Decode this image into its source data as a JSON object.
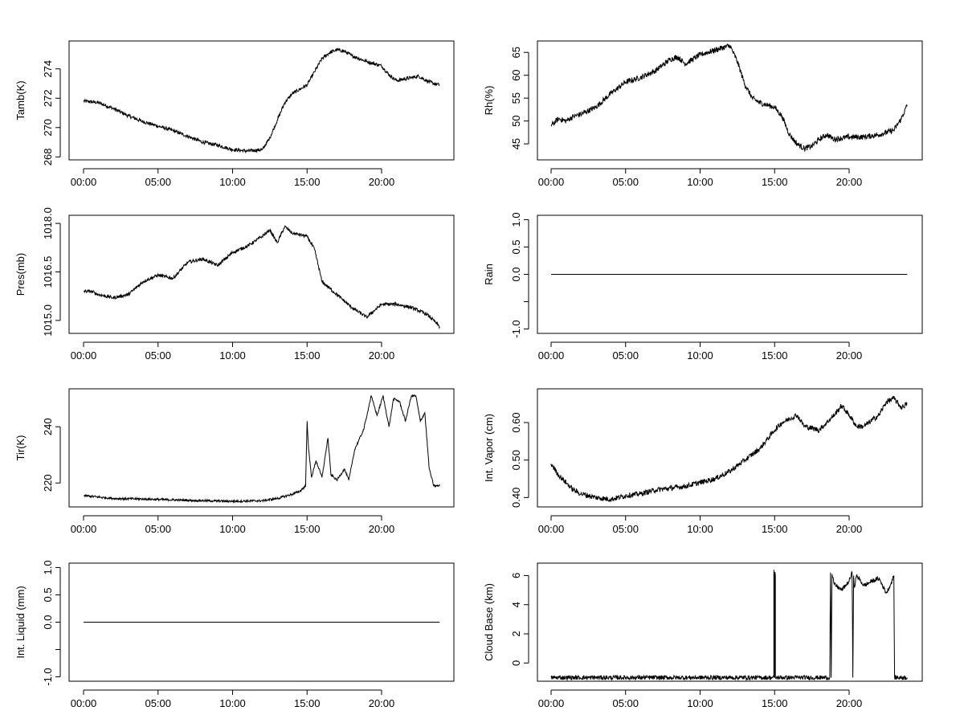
{
  "figure": {
    "layout": "4 rows x 2 columns of time-series panels",
    "time_ticks": [
      "00:00",
      "05:00",
      "10:00",
      "15:00",
      "20:00"
    ],
    "line_color": "#000000"
  },
  "chart_data": [
    {
      "id": "tamb",
      "type": "line",
      "ylabel": "Tamb(K)",
      "xlabel": "",
      "x_unit": "hours",
      "xlim": [
        0,
        24
      ],
      "ylim": [
        267.8,
        275.9
      ],
      "yticks": [
        268,
        270,
        272,
        274
      ],
      "ytick_labels": [
        "268",
        "270",
        "272",
        "274"
      ],
      "noise": 0.12,
      "series": [
        {
          "x": [
            0,
            1,
            2,
            3,
            4,
            5,
            6,
            7,
            8,
            9,
            10,
            11,
            12,
            12.5,
            13,
            13.5,
            14,
            15,
            15.5,
            16,
            16.5,
            17,
            17.5,
            18,
            19,
            20,
            20.5,
            21,
            22,
            22.5,
            23,
            23.5,
            23.9
          ],
          "y": [
            271.8,
            271.7,
            271.3,
            270.8,
            270.4,
            270.1,
            269.8,
            269.4,
            269.0,
            268.8,
            268.5,
            268.4,
            268.5,
            269.3,
            270.5,
            271.7,
            272.3,
            272.9,
            273.8,
            274.7,
            275.1,
            275.3,
            275.2,
            274.9,
            274.5,
            274.2,
            273.6,
            273.2,
            273.4,
            273.5,
            273.2,
            273.0,
            272.9
          ]
        }
      ]
    },
    {
      "id": "rh",
      "type": "line",
      "ylabel": "Rh(%)",
      "xlabel": "",
      "x_unit": "hours",
      "xlim": [
        0,
        24
      ],
      "ylim": [
        41.5,
        67.5
      ],
      "yticks": [
        45,
        50,
        55,
        60,
        65
      ],
      "ytick_labels": [
        "45",
        "50",
        "55",
        "60",
        "65"
      ],
      "noise": 0.6,
      "series": [
        {
          "x": [
            0,
            0.5,
            1,
            1.5,
            2,
            3,
            4,
            5,
            6,
            7,
            8,
            8.5,
            9,
            10,
            11,
            12,
            12.5,
            13,
            13.5,
            14,
            15,
            15.5,
            16,
            16.5,
            17,
            17.5,
            18,
            18.5,
            19,
            20,
            21,
            22,
            23,
            23.5,
            23.9
          ],
          "y": [
            49,
            50.5,
            50,
            51,
            51.5,
            53,
            56,
            58.5,
            59.5,
            61,
            63.5,
            64,
            62.5,
            64.5,
            65.5,
            66.5,
            63,
            58,
            55,
            54,
            53,
            51,
            47,
            45,
            44,
            44.5,
            46,
            47,
            46,
            46.5,
            46.5,
            47,
            48,
            50.5,
            53.5
          ]
        }
      ]
    },
    {
      "id": "pres",
      "type": "line",
      "ylabel": "Pres(mb)",
      "xlabel": "",
      "x_unit": "hours",
      "xlim": [
        0,
        24
      ],
      "ylim": [
        1014.6,
        1018.25
      ],
      "yticks": [
        1015.0,
        1016.5,
        1018.0
      ],
      "ytick_labels": [
        "1015.0",
        "1016.5",
        "1018.0"
      ],
      "noise": 0.05,
      "series": [
        {
          "x": [
            0,
            0.5,
            1,
            2,
            3,
            4,
            5,
            6,
            7,
            8,
            9,
            10,
            11,
            12,
            12.5,
            13,
            13.5,
            14,
            15,
            15.5,
            16,
            17,
            18,
            19,
            20,
            21,
            22,
            22.5,
            23,
            23.5,
            23.9
          ],
          "y": [
            1015.9,
            1015.9,
            1015.8,
            1015.7,
            1015.8,
            1016.2,
            1016.4,
            1016.3,
            1016.8,
            1016.9,
            1016.7,
            1017.1,
            1017.3,
            1017.6,
            1017.8,
            1017.4,
            1017.9,
            1017.7,
            1017.6,
            1017.2,
            1016.2,
            1015.8,
            1015.4,
            1015.1,
            1015.5,
            1015.5,
            1015.4,
            1015.3,
            1015.2,
            1015.0,
            1014.8
          ]
        }
      ]
    },
    {
      "id": "rain",
      "type": "line",
      "ylabel": "Rain",
      "xlabel": "",
      "x_unit": "hours",
      "xlim": [
        0,
        24
      ],
      "ylim": [
        -1.08,
        1.08
      ],
      "yticks": [
        -1.0,
        -0.5,
        0.0,
        0.5,
        1.0
      ],
      "ytick_labels": [
        "-1.0",
        "",
        "0.0",
        "0.5",
        "1.0"
      ],
      "noise": 0,
      "series": [
        {
          "x": [
            0,
            23.9
          ],
          "y": [
            0,
            0
          ]
        }
      ]
    },
    {
      "id": "tir",
      "type": "line",
      "ylabel": "Tir(K)",
      "xlabel": "",
      "x_unit": "hours",
      "xlim": [
        0,
        24
      ],
      "ylim": [
        211.5,
        253.5
      ],
      "yticks": [
        220,
        240
      ],
      "ytick_labels": [
        "220",
        "240"
      ],
      "noise": 0.4,
      "series": [
        {
          "x": [
            0,
            1,
            2,
            4,
            6,
            8,
            10,
            12,
            13,
            14,
            14.5,
            14.9,
            15.0,
            15.1,
            15.3,
            15.6,
            16.0,
            16.4,
            16.6,
            17.0,
            17.5,
            17.8,
            18.2,
            18.8,
            19.3,
            19.7,
            20.1,
            20.5,
            20.8,
            21.2,
            21.6,
            22.0,
            22.3,
            22.6,
            22.9,
            23.2,
            23.5,
            23.9
          ],
          "y": [
            215.5,
            215,
            214.5,
            214.3,
            214,
            213.7,
            213.5,
            213.7,
            214.5,
            216,
            217,
            219,
            242,
            232,
            222,
            228,
            222,
            236,
            223,
            221,
            225,
            221,
            232,
            239,
            251,
            244,
            251,
            240,
            250,
            249,
            242,
            251,
            251,
            242,
            245,
            225,
            219,
            219
          ]
        }
      ]
    },
    {
      "id": "vapor",
      "type": "line",
      "ylabel": "Int. Vapor (cm)",
      "xlabel": "",
      "x_unit": "hours",
      "xlim": [
        0,
        24
      ],
      "ylim": [
        0.375,
        0.69
      ],
      "yticks": [
        0.4,
        0.5,
        0.6
      ],
      "ytick_labels": [
        "0.40",
        "0.50",
        "0.60"
      ],
      "noise": 0.007,
      "series": [
        {
          "x": [
            0,
            0.5,
            1,
            1.5,
            2,
            3,
            4,
            5,
            6,
            7,
            8,
            9,
            10,
            11,
            12,
            13,
            14,
            15,
            15.5,
            16,
            16.5,
            17,
            18,
            19,
            19.5,
            20,
            20.5,
            21,
            22,
            22.5,
            23,
            23.5,
            23.9
          ],
          "y": [
            0.49,
            0.46,
            0.44,
            0.42,
            0.41,
            0.4,
            0.395,
            0.405,
            0.41,
            0.42,
            0.425,
            0.43,
            0.44,
            0.45,
            0.47,
            0.5,
            0.53,
            0.58,
            0.6,
            0.61,
            0.62,
            0.59,
            0.58,
            0.62,
            0.645,
            0.62,
            0.59,
            0.59,
            0.62,
            0.655,
            0.665,
            0.64,
            0.65
          ]
        }
      ]
    },
    {
      "id": "liquid",
      "type": "line",
      "ylabel": "Int. Liquid (mm)",
      "xlabel": "",
      "x_unit": "hours",
      "xlim": [
        0,
        24
      ],
      "ylim": [
        -1.08,
        1.08
      ],
      "yticks": [
        -1.0,
        -0.5,
        0.0,
        0.5,
        1.0
      ],
      "ytick_labels": [
        "-1.0",
        "",
        "0.0",
        "0.5",
        "1.0"
      ],
      "noise": 0,
      "series": [
        {
          "x": [
            0,
            23.9
          ],
          "y": [
            0,
            0
          ]
        }
      ]
    },
    {
      "id": "cloudbase",
      "type": "line",
      "ylabel": "Cloud Base (km)",
      "xlabel": "",
      "x_unit": "hours",
      "xlim": [
        0,
        24
      ],
      "ylim": [
        -1.25,
        6.85
      ],
      "yticks": [
        0,
        2,
        4,
        6
      ],
      "ytick_labels": [
        "0",
        "2",
        "4",
        "6"
      ],
      "noise": 0.15,
      "series": [
        {
          "x": [
            0,
            14.95,
            14.95,
            15.0,
            15.0,
            15.05,
            15.05,
            18.7,
            18.75,
            18.8,
            18.85,
            19.0,
            19.5,
            20.0,
            20.2,
            20.25,
            20.3,
            20.35,
            20.5,
            21.0,
            21.5,
            22.0,
            22.5,
            22.8,
            23.0,
            23.05,
            23.9
          ],
          "y": [
            -1,
            -1,
            6.4,
            -1,
            6.2,
            6.0,
            -1,
            -1,
            6.2,
            -1,
            6.1,
            5.4,
            5.0,
            5.6,
            6.2,
            -1,
            6.0,
            5.2,
            6.0,
            5.3,
            5.6,
            5.8,
            4.8,
            5.4,
            6.0,
            -1,
            -1
          ]
        }
      ]
    }
  ]
}
